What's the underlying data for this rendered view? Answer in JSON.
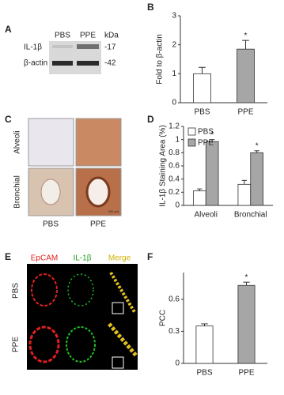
{
  "panel_labels": [
    "A",
    "B",
    "C",
    "D",
    "E",
    "F"
  ],
  "blot": {
    "columns": [
      "PBS",
      "PPE"
    ],
    "unit": "kDa",
    "rows": [
      {
        "name": "IL-1β",
        "marker": "-17"
      },
      {
        "name": "β-actin",
        "marker": "-42"
      }
    ]
  },
  "histology": {
    "rows": [
      "Alveoli",
      "Bronchial"
    ],
    "columns": [
      "PBS",
      "PPE"
    ],
    "scale_bar": "200 μm"
  },
  "immunofluorescence": {
    "channels": [
      "EpCAM",
      "IL-1β",
      "Merge"
    ],
    "rows": [
      "PBS",
      "PPE"
    ]
  },
  "chart_data": [
    {
      "type": "bar",
      "y_label": "Fold to β-actin",
      "categories": [
        "PBS",
        "PPE"
      ],
      "values": [
        1.0,
        1.85
      ],
      "errors": [
        0.22,
        0.3
      ],
      "colors": [
        "#ffffff",
        "#a6a6a6"
      ],
      "annotations": [
        null,
        "*"
      ],
      "ylim": [
        0,
        3
      ],
      "yticks": [
        0,
        1,
        2,
        3
      ]
    },
    {
      "type": "bar",
      "y_label": "IL-1β Staining Area (%)",
      "categories": [
        "Alveoli",
        "Bronchial"
      ],
      "series": [
        {
          "name": "PBS",
          "color": "#ffffff",
          "values": [
            0.22,
            0.32
          ],
          "errors": [
            0.03,
            0.06
          ]
        },
        {
          "name": "PPE",
          "color": "#a6a6a6",
          "values": [
            0.97,
            0.8
          ],
          "errors": [
            0.03,
            0.03
          ],
          "annotations": [
            "*",
            "*"
          ]
        }
      ],
      "legend": "upper left",
      "ylim": [
        0,
        1.2
      ],
      "yticks": [
        0,
        0.2,
        0.4,
        0.6,
        0.8,
        1,
        1.2
      ]
    },
    {
      "type": "bar",
      "y_label": "PCC",
      "categories": [
        "PBS",
        "PPE"
      ],
      "values": [
        0.35,
        0.73
      ],
      "errors": [
        0.02,
        0.03
      ],
      "colors": [
        "#ffffff",
        "#a6a6a6"
      ],
      "annotations": [
        null,
        "*"
      ],
      "ylim": [
        0,
        0.85
      ],
      "yticks": [
        0,
        0.3,
        0.6
      ]
    }
  ]
}
